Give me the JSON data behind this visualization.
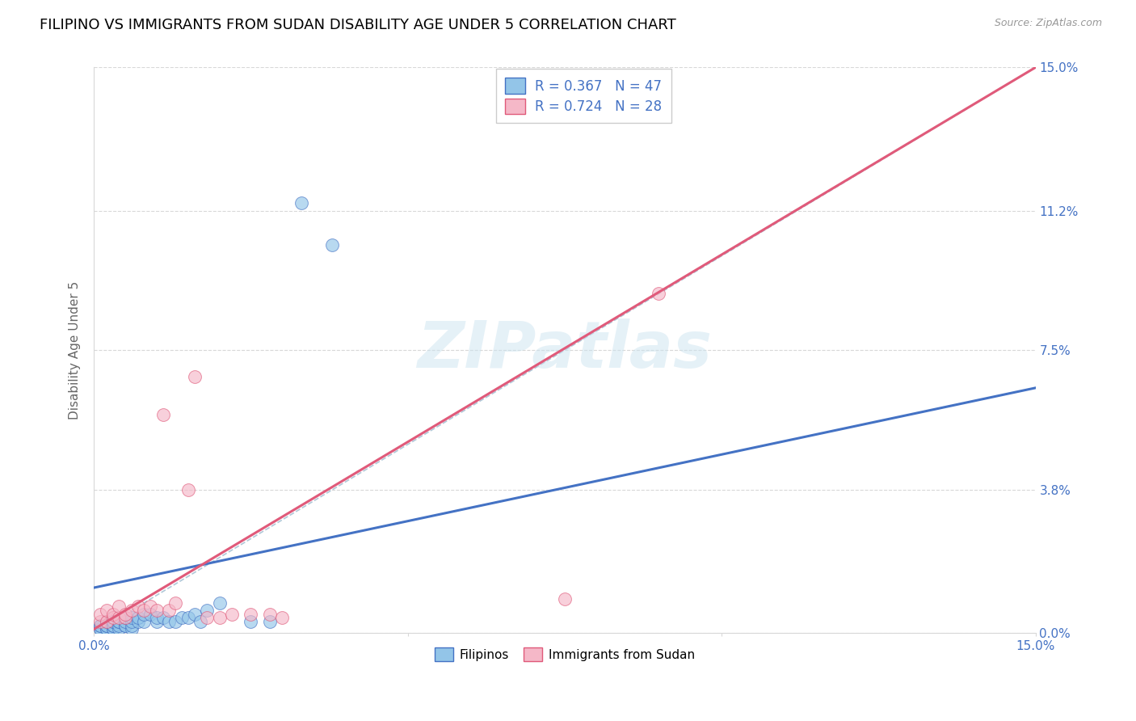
{
  "title": "FILIPINO VS IMMIGRANTS FROM SUDAN DISABILITY AGE UNDER 5 CORRELATION CHART",
  "source": "Source: ZipAtlas.com",
  "ylabel": "Disability Age Under 5",
  "xlim": [
    0.0,
    0.15
  ],
  "ylim": [
    0.0,
    0.15
  ],
  "ytick_labels": [
    "0.0%",
    "3.8%",
    "7.5%",
    "11.2%",
    "15.0%"
  ],
  "ytick_positions": [
    0.0,
    0.038,
    0.075,
    0.112,
    0.15
  ],
  "title_fontsize": 13,
  "axis_label_fontsize": 11,
  "tick_fontsize": 11,
  "blue_color": "#93c5e8",
  "pink_color": "#f5b8c8",
  "line_blue": "#4472c4",
  "line_pink": "#e05a7a",
  "diag_color": "#b0c8d8",
  "grid_color": "#d8d8d8",
  "watermark": "ZIPatlas",
  "filipinos_x": [
    0.001,
    0.001,
    0.001,
    0.001,
    0.002,
    0.002,
    0.002,
    0.002,
    0.002,
    0.003,
    0.003,
    0.003,
    0.003,
    0.003,
    0.003,
    0.004,
    0.004,
    0.004,
    0.004,
    0.005,
    0.005,
    0.005,
    0.005,
    0.006,
    0.006,
    0.006,
    0.006,
    0.007,
    0.007,
    0.008,
    0.008,
    0.009,
    0.01,
    0.01,
    0.011,
    0.012,
    0.013,
    0.014,
    0.015,
    0.016,
    0.017,
    0.018,
    0.02,
    0.025,
    0.028,
    0.033,
    0.038
  ],
  "filipinos_y": [
    0.001,
    0.001,
    0.002,
    0.002,
    0.001,
    0.001,
    0.002,
    0.002,
    0.003,
    0.001,
    0.001,
    0.002,
    0.002,
    0.003,
    0.003,
    0.001,
    0.002,
    0.003,
    0.003,
    0.002,
    0.002,
    0.003,
    0.004,
    0.001,
    0.002,
    0.003,
    0.004,
    0.003,
    0.004,
    0.003,
    0.005,
    0.005,
    0.003,
    0.004,
    0.004,
    0.003,
    0.003,
    0.004,
    0.004,
    0.005,
    0.003,
    0.006,
    0.008,
    0.003,
    0.003,
    0.114,
    0.103
  ],
  "sudan_x": [
    0.001,
    0.001,
    0.002,
    0.002,
    0.003,
    0.003,
    0.004,
    0.004,
    0.005,
    0.005,
    0.006,
    0.007,
    0.008,
    0.009,
    0.01,
    0.011,
    0.012,
    0.013,
    0.015,
    0.016,
    0.018,
    0.02,
    0.022,
    0.025,
    0.028,
    0.03,
    0.075,
    0.09
  ],
  "sudan_y": [
    0.003,
    0.005,
    0.003,
    0.006,
    0.004,
    0.005,
    0.004,
    0.007,
    0.004,
    0.005,
    0.006,
    0.007,
    0.006,
    0.007,
    0.006,
    0.058,
    0.006,
    0.008,
    0.038,
    0.068,
    0.004,
    0.004,
    0.005,
    0.005,
    0.005,
    0.004,
    0.009,
    0.09
  ],
  "blue_line_x": [
    0.0,
    0.15
  ],
  "blue_line_y": [
    0.012,
    0.065
  ],
  "pink_line_x": [
    0.0,
    0.15
  ],
  "pink_line_y": [
    0.001,
    0.15
  ]
}
